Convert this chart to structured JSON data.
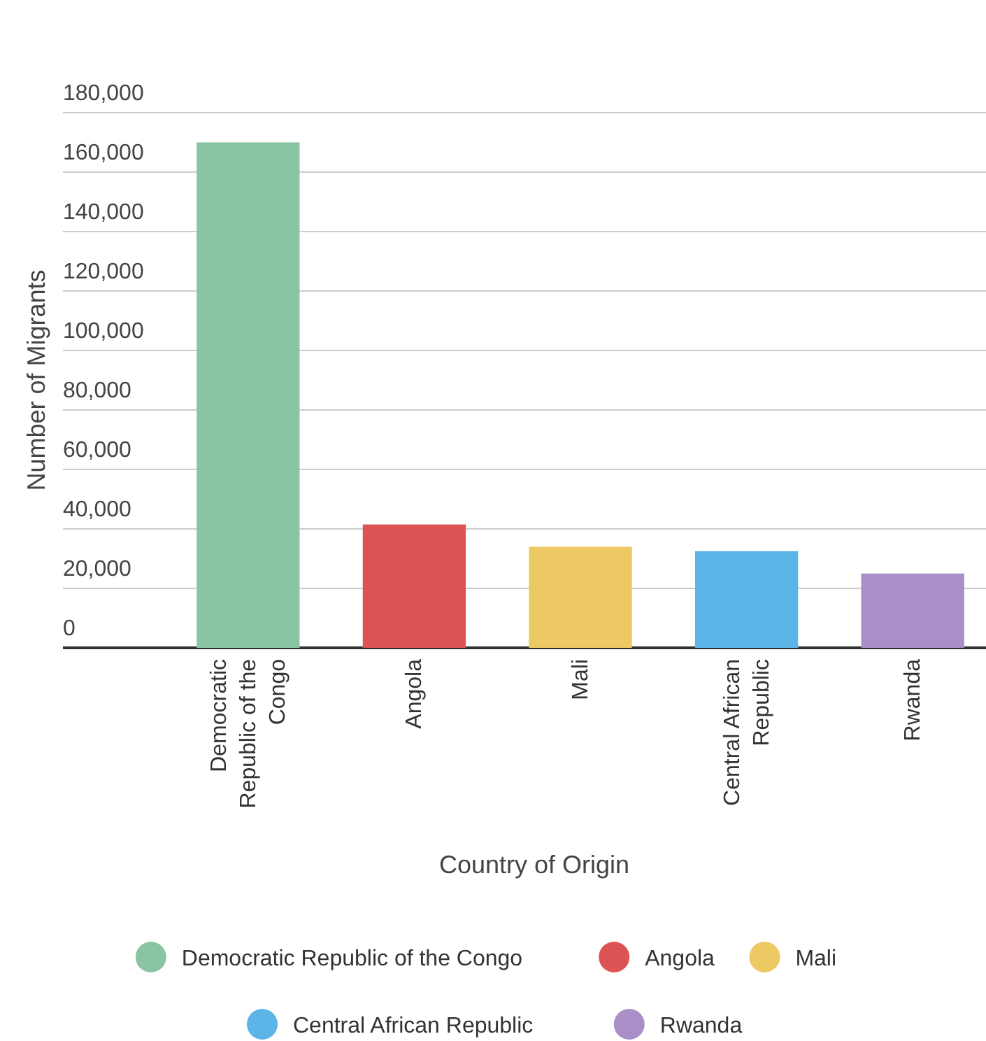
{
  "chart_data": {
    "type": "bar",
    "xlabel": "Country of Origin",
    "ylabel": "Number of Migrants",
    "categories": [
      "Democratic Republic of the Congo",
      "Angola",
      "Mali",
      "Central African Republic",
      "Rwanda"
    ],
    "series": [
      {
        "name": "Democratic Republic of the Congo",
        "color": "#8bc4a3",
        "values": [
          170000,
          null,
          null,
          null,
          null
        ]
      },
      {
        "name": "Angola",
        "color": "#dc5353",
        "values": [
          null,
          41500,
          null,
          null,
          null
        ]
      },
      {
        "name": "Mali",
        "color": "#edc963",
        "values": [
          null,
          null,
          34000,
          null,
          null
        ]
      },
      {
        "name": "Central African Republic",
        "color": "#5bb5e6",
        "values": [
          null,
          null,
          null,
          32500,
          null
        ]
      },
      {
        "name": "Rwanda",
        "color": "#a98ec8",
        "values": [
          null,
          null,
          null,
          null,
          25000
        ]
      }
    ],
    "ylim": [
      0,
      180000
    ],
    "yticks": [
      {
        "value": 0,
        "label": "0"
      },
      {
        "value": 20000,
        "label": "20,000"
      },
      {
        "value": 40000,
        "label": "40,000"
      },
      {
        "value": 60000,
        "label": "60,000"
      },
      {
        "value": 80000,
        "label": "80,000"
      },
      {
        "value": 100000,
        "label": "100,000"
      },
      {
        "value": 120000,
        "label": "120,000"
      },
      {
        "value": 140000,
        "label": "140,000"
      },
      {
        "value": 160000,
        "label": "160,000"
      },
      {
        "value": 180000,
        "label": "180,000"
      }
    ],
    "grid": "y",
    "legend": "bottom"
  }
}
